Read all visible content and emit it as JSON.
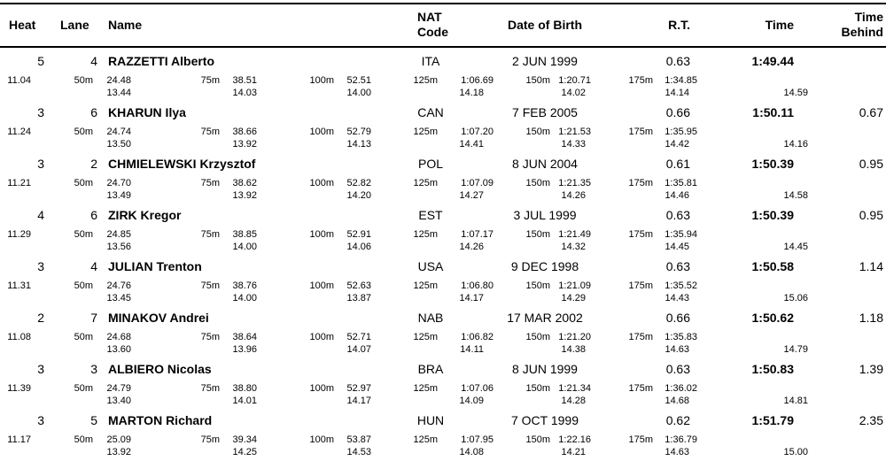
{
  "colors": {
    "background": "#ffffff",
    "text": "#000000",
    "rule": "#000000"
  },
  "table": {
    "headers": {
      "heat": "Heat",
      "lane": "Lane",
      "name": "Name",
      "nat_line1": "NAT",
      "nat_line2": "Code",
      "dob": "Date of Birth",
      "rt": "R.T.",
      "time": "Time",
      "behind_line1": "Time",
      "behind_line2": "Behind"
    },
    "rows": [
      {
        "heat": "5",
        "lane": "4",
        "name": "RAZZETTI Alberto",
        "nat": "ITA",
        "dob": "2 JUN 1999",
        "rt": "0.63",
        "time": "1:49.44",
        "behind": "",
        "reaction": "11.04",
        "splits": [
          {
            "label": "50m",
            "value": "24.48"
          },
          {
            "label": "75m",
            "value": "38.51"
          },
          {
            "label": "100m",
            "value": "52.51"
          },
          {
            "label": "125m",
            "value": "1:06.69"
          },
          {
            "label": "150m",
            "value": "1:20.71"
          },
          {
            "label": "175m",
            "value": "1:34.85"
          }
        ],
        "diffs": [
          "13.44",
          "14.03",
          "14.00",
          "14.18",
          "14.02",
          "14.14",
          "14.59"
        ]
      },
      {
        "heat": "3",
        "lane": "6",
        "name": "KHARUN Ilya",
        "nat": "CAN",
        "dob": "7 FEB 2005",
        "rt": "0.66",
        "time": "1:50.11",
        "behind": "0.67",
        "reaction": "11.24",
        "splits": [
          {
            "label": "50m",
            "value": "24.74"
          },
          {
            "label": "75m",
            "value": "38.66"
          },
          {
            "label": "100m",
            "value": "52.79"
          },
          {
            "label": "125m",
            "value": "1:07.20"
          },
          {
            "label": "150m",
            "value": "1:21.53"
          },
          {
            "label": "175m",
            "value": "1:35.95"
          }
        ],
        "diffs": [
          "13.50",
          "13.92",
          "14.13",
          "14.41",
          "14.33",
          "14.42",
          "14.16"
        ]
      },
      {
        "heat": "3",
        "lane": "2",
        "name": "CHMIELEWSKI Krzysztof",
        "nat": "POL",
        "dob": "8 JUN 2004",
        "rt": "0.61",
        "time": "1:50.39",
        "behind": "0.95",
        "reaction": "11.21",
        "splits": [
          {
            "label": "50m",
            "value": "24.70"
          },
          {
            "label": "75m",
            "value": "38.62"
          },
          {
            "label": "100m",
            "value": "52.82"
          },
          {
            "label": "125m",
            "value": "1:07.09"
          },
          {
            "label": "150m",
            "value": "1:21.35"
          },
          {
            "label": "175m",
            "value": "1:35.81"
          }
        ],
        "diffs": [
          "13.49",
          "13.92",
          "14.20",
          "14.27",
          "14.26",
          "14.46",
          "14.58"
        ]
      },
      {
        "heat": "4",
        "lane": "6",
        "name": "ZIRK Kregor",
        "nat": "EST",
        "dob": "3 JUL 1999",
        "rt": "0.63",
        "time": "1:50.39",
        "behind": "0.95",
        "reaction": "11.29",
        "splits": [
          {
            "label": "50m",
            "value": "24.85"
          },
          {
            "label": "75m",
            "value": "38.85"
          },
          {
            "label": "100m",
            "value": "52.91"
          },
          {
            "label": "125m",
            "value": "1:07.17"
          },
          {
            "label": "150m",
            "value": "1:21.49"
          },
          {
            "label": "175m",
            "value": "1:35.94"
          }
        ],
        "diffs": [
          "13.56",
          "14.00",
          "14.06",
          "14.26",
          "14.32",
          "14.45",
          "14.45"
        ]
      },
      {
        "heat": "3",
        "lane": "4",
        "name": "JULIAN Trenton",
        "nat": "USA",
        "dob": "9 DEC 1998",
        "rt": "0.63",
        "time": "1:50.58",
        "behind": "1.14",
        "reaction": "11.31",
        "splits": [
          {
            "label": "50m",
            "value": "24.76"
          },
          {
            "label": "75m",
            "value": "38.76"
          },
          {
            "label": "100m",
            "value": "52.63"
          },
          {
            "label": "125m",
            "value": "1:06.80"
          },
          {
            "label": "150m",
            "value": "1:21.09"
          },
          {
            "label": "175m",
            "value": "1:35.52"
          }
        ],
        "diffs": [
          "13.45",
          "14.00",
          "13.87",
          "14.17",
          "14.29",
          "14.43",
          "15.06"
        ]
      },
      {
        "heat": "2",
        "lane": "7",
        "name": "MINAKOV Andrei",
        "nat": "NAB",
        "dob": "17 MAR 2002",
        "rt": "0.66",
        "time": "1:50.62",
        "behind": "1.18",
        "reaction": "11.08",
        "splits": [
          {
            "label": "50m",
            "value": "24.68"
          },
          {
            "label": "75m",
            "value": "38.64"
          },
          {
            "label": "100m",
            "value": "52.71"
          },
          {
            "label": "125m",
            "value": "1:06.82"
          },
          {
            "label": "150m",
            "value": "1:21.20"
          },
          {
            "label": "175m",
            "value": "1:35.83"
          }
        ],
        "diffs": [
          "13.60",
          "13.96",
          "14.07",
          "14.11",
          "14.38",
          "14.63",
          "14.79"
        ]
      },
      {
        "heat": "3",
        "lane": "3",
        "name": "ALBIERO Nicolas",
        "nat": "BRA",
        "dob": "8 JUN 1999",
        "rt": "0.63",
        "time": "1:50.83",
        "behind": "1.39",
        "reaction": "11.39",
        "splits": [
          {
            "label": "50m",
            "value": "24.79"
          },
          {
            "label": "75m",
            "value": "38.80"
          },
          {
            "label": "100m",
            "value": "52.97"
          },
          {
            "label": "125m",
            "value": "1:07.06"
          },
          {
            "label": "150m",
            "value": "1:21.34"
          },
          {
            "label": "175m",
            "value": "1:36.02"
          }
        ],
        "diffs": [
          "13.40",
          "14.01",
          "14.17",
          "14.09",
          "14.28",
          "14.68",
          "14.81"
        ]
      },
      {
        "heat": "3",
        "lane": "5",
        "name": "MARTON Richard",
        "nat": "HUN",
        "dob": "7 OCT 1999",
        "rt": "0.62",
        "time": "1:51.79",
        "behind": "2.35",
        "reaction": "11.17",
        "splits": [
          {
            "label": "50m",
            "value": "25.09"
          },
          {
            "label": "75m",
            "value": "39.34"
          },
          {
            "label": "100m",
            "value": "53.87"
          },
          {
            "label": "125m",
            "value": "1:07.95"
          },
          {
            "label": "150m",
            "value": "1:22.16"
          },
          {
            "label": "175m",
            "value": "1:36.79"
          }
        ],
        "diffs": [
          "13.92",
          "14.25",
          "14.53",
          "14.08",
          "14.21",
          "14.63",
          "15.00"
        ]
      }
    ]
  }
}
